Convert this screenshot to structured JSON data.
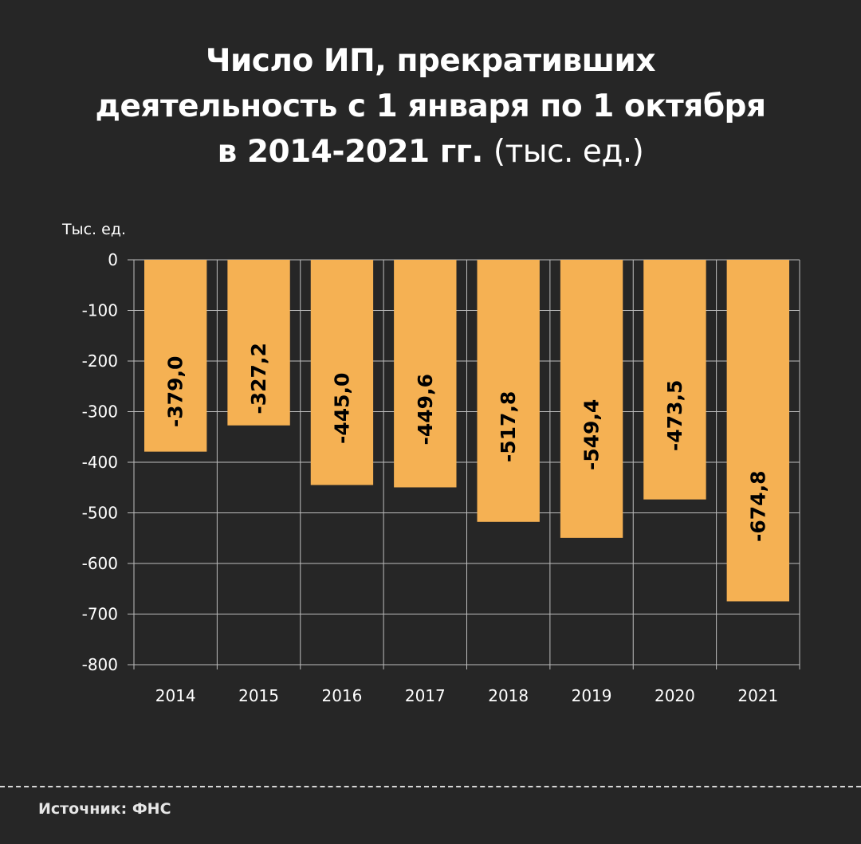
{
  "title": {
    "line1": "Число ИП, прекративших",
    "line2": "деятельность с 1 января по 1 октября",
    "line3_bold": "в 2014-2021 гг.",
    "line3_normal": "(тыс. ед.)"
  },
  "source": "Источник: ФНС",
  "chart_data": {
    "type": "bar",
    "title": "Число ИП, прекративших деятельность с 1 января по 1 октября в 2014-2021 гг. (тыс. ед.)",
    "ylabel": "Тыс. ед.",
    "xlabel": "",
    "categories": [
      "2014",
      "2015",
      "2016",
      "2017",
      "2018",
      "2019",
      "2020",
      "2021"
    ],
    "values": [
      -379.0,
      -327.2,
      -445.0,
      -449.6,
      -517.8,
      -549.4,
      -473.5,
      -674.8
    ],
    "data_labels": [
      "-379,0",
      "-327,2",
      "-445,0",
      "-449,6",
      "-517,8",
      "-549,4",
      "-473,5",
      "-674,8"
    ],
    "ylim": [
      -800,
      0
    ],
    "yticks": [
      0,
      -100,
      -200,
      -300,
      -400,
      -500,
      -600,
      -700,
      -800
    ],
    "grid": true,
    "bar_color": "#f5b153",
    "background": "#262626"
  }
}
